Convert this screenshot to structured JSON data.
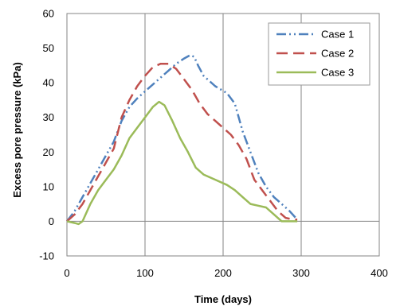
{
  "chart_data": {
    "type": "line",
    "title": "",
    "xlabel": "Time (days)",
    "ylabel": "Excess pore pressure (kPa)",
    "xlim": [
      0,
      400
    ],
    "ylim": [
      -10,
      60
    ],
    "x_ticks": [
      0,
      100,
      200,
      300,
      400
    ],
    "y_ticks": [
      -10,
      0,
      10,
      20,
      30,
      40,
      50,
      60
    ],
    "grid": "vertical",
    "legend_position": "top-right",
    "series": [
      {
        "name": "Case 1",
        "color": "#4f81bd",
        "dash": "dash-dot-dot",
        "points": [
          [
            0,
            0
          ],
          [
            10,
            3
          ],
          [
            20,
            7
          ],
          [
            30,
            11
          ],
          [
            40,
            15
          ],
          [
            50,
            19
          ],
          [
            60,
            23
          ],
          [
            70,
            29
          ],
          [
            80,
            33
          ],
          [
            90,
            35.5
          ],
          [
            100,
            37.5
          ],
          [
            110,
            39.5
          ],
          [
            120,
            41.5
          ],
          [
            130,
            43.5
          ],
          [
            140,
            45.5
          ],
          [
            150,
            47
          ],
          [
            158,
            48
          ],
          [
            163,
            47.5
          ],
          [
            168,
            45
          ],
          [
            175,
            42
          ],
          [
            190,
            39
          ],
          [
            205,
            37
          ],
          [
            215,
            34
          ],
          [
            225,
            26
          ],
          [
            235,
            20
          ],
          [
            245,
            14
          ],
          [
            255,
            10
          ],
          [
            265,
            7
          ],
          [
            275,
            5
          ],
          [
            285,
            3
          ],
          [
            295,
            0.5
          ]
        ]
      },
      {
        "name": "Case 2",
        "color": "#c0504d",
        "dash": "dash",
        "points": [
          [
            0,
            0
          ],
          [
            10,
            2
          ],
          [
            20,
            5
          ],
          [
            30,
            9
          ],
          [
            40,
            13
          ],
          [
            50,
            17
          ],
          [
            60,
            21
          ],
          [
            70,
            30
          ],
          [
            80,
            35
          ],
          [
            90,
            39
          ],
          [
            100,
            42
          ],
          [
            110,
            44.5
          ],
          [
            120,
            45.5
          ],
          [
            130,
            45.5
          ],
          [
            140,
            44
          ],
          [
            150,
            41
          ],
          [
            160,
            38
          ],
          [
            170,
            34
          ],
          [
            180,
            31
          ],
          [
            190,
            29
          ],
          [
            200,
            27
          ],
          [
            210,
            25
          ],
          [
            220,
            22
          ],
          [
            230,
            18
          ],
          [
            240,
            12
          ],
          [
            250,
            9
          ],
          [
            260,
            6
          ],
          [
            270,
            3
          ],
          [
            280,
            1
          ],
          [
            290,
            0.5
          ],
          [
            295,
            0.5
          ]
        ]
      },
      {
        "name": "Case 3",
        "color": "#9bbb59",
        "dash": "solid",
        "points": [
          [
            0,
            0
          ],
          [
            10,
            -0.5
          ],
          [
            15,
            -0.8
          ],
          [
            20,
            0
          ],
          [
            30,
            5
          ],
          [
            40,
            9
          ],
          [
            50,
            12
          ],
          [
            60,
            15
          ],
          [
            70,
            19
          ],
          [
            80,
            24
          ],
          [
            90,
            27
          ],
          [
            100,
            30
          ],
          [
            110,
            33
          ],
          [
            118,
            34.5
          ],
          [
            125,
            33.5
          ],
          [
            135,
            29
          ],
          [
            145,
            24
          ],
          [
            155,
            20
          ],
          [
            165,
            15.5
          ],
          [
            175,
            13.5
          ],
          [
            190,
            12
          ],
          [
            205,
            10.5
          ],
          [
            215,
            9
          ],
          [
            225,
            7
          ],
          [
            235,
            5
          ],
          [
            245,
            4.5
          ],
          [
            255,
            4
          ],
          [
            265,
            2
          ],
          [
            275,
            0
          ],
          [
            285,
            0
          ],
          [
            295,
            0
          ]
        ]
      }
    ]
  }
}
